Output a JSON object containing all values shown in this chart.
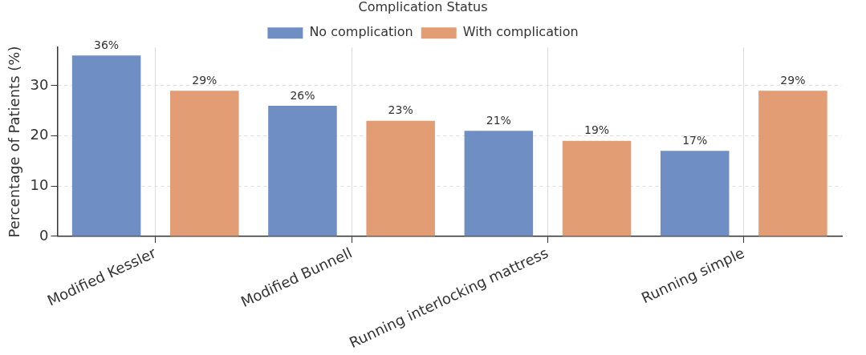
{
  "chart_data": {
    "type": "bar",
    "ylabel": "Percentage of Patients (%)",
    "legend_title": "Complication Status",
    "categories": [
      "Modified Kessler",
      "Modified Bunnell",
      "Running interlocking mattress",
      "Running simple"
    ],
    "series": [
      {
        "name": "No complication",
        "color": "#6f8fc4",
        "values": [
          36,
          26,
          21,
          17
        ],
        "value_labels": [
          "36%",
          "26%",
          "21%",
          "17%"
        ]
      },
      {
        "name": "With complication",
        "color": "#e39d74",
        "values": [
          29,
          23,
          19,
          29
        ],
        "value_labels": [
          "29%",
          "23%",
          "19%",
          "29%"
        ]
      }
    ],
    "ylim": [
      0,
      37.6
    ],
    "yticks": [
      0,
      10,
      20,
      30
    ],
    "grid": true,
    "legend": "top"
  }
}
